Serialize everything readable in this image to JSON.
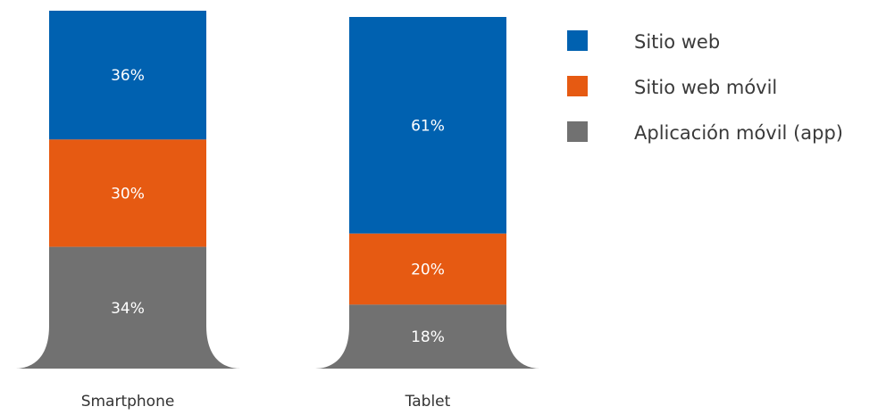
{
  "chart_data": {
    "type": "bar",
    "stacked": true,
    "categories": [
      "Smartphone",
      "Tablet"
    ],
    "series": [
      {
        "name": "Sitio web",
        "color": "#0061b0",
        "values": [
          36,
          61
        ],
        "labels": [
          "36%",
          "61%"
        ]
      },
      {
        "name": "Sitio web móvil",
        "color": "#e65a12",
        "values": [
          30,
          20
        ],
        "labels": [
          "30%",
          "20%"
        ]
      },
      {
        "name": "Aplicación móvil (app)",
        "color": "#717171",
        "values": [
          34,
          18
        ],
        "labels": [
          "34%",
          "18%"
        ]
      }
    ],
    "unit": "%",
    "legend_position": "right",
    "grid": false,
    "axes_visible": false
  }
}
